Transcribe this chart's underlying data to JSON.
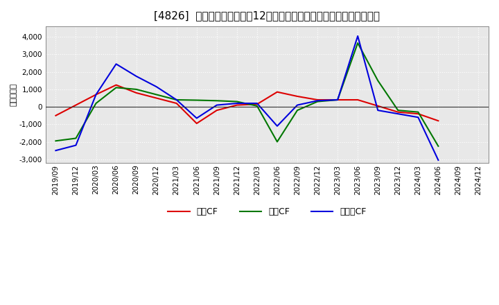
{
  "title": "[4826]  キャッシュフローの12か月移動合計の対前年同期増減額の推移",
  "ylabel": "（百万円）",
  "xlabels": [
    "2019/09",
    "2019/12",
    "2020/03",
    "2020/06",
    "2020/09",
    "2020/12",
    "2021/03",
    "2021/06",
    "2021/09",
    "2021/12",
    "2022/03",
    "2022/06",
    "2022/09",
    "2022/12",
    "2023/03",
    "2023/06",
    "2023/09",
    "2023/12",
    "2024/03",
    "2024/06",
    "2024/09",
    "2024/12"
  ],
  "operating_cf": [
    -500,
    100,
    700,
    1250,
    800,
    500,
    200,
    -950,
    -200,
    100,
    150,
    850,
    600,
    400,
    400,
    400,
    50,
    -300,
    -400,
    -800,
    null,
    null
  ],
  "investing_cf": [
    -1950,
    -1800,
    200,
    1100,
    1000,
    700,
    400,
    380,
    350,
    300,
    50,
    -2000,
    -200,
    300,
    400,
    3650,
    1500,
    -200,
    -300,
    -2250,
    null,
    null
  ],
  "free_cf": [
    -2500,
    -2200,
    700,
    2450,
    1750,
    1150,
    400,
    -650,
    100,
    200,
    200,
    -1100,
    100,
    350,
    400,
    4050,
    -200,
    -400,
    -600,
    -3050,
    null,
    null
  ],
  "ylim": [
    -3200,
    4600
  ],
  "yticks": [
    -3000,
    -2000,
    -1000,
    0,
    1000,
    2000,
    3000,
    4000
  ],
  "bg_color": "#ffffff",
  "plot_bg_color": "#e8e8e8",
  "grid_color": "#ffffff",
  "operating_color": "#dd0000",
  "investing_color": "#007700",
  "free_color": "#0000dd",
  "legend_labels": [
    "営業CF",
    "投資CF",
    "フリーCF"
  ],
  "title_fontsize": 11,
  "axis_fontsize": 7.5,
  "ylabel_fontsize": 8
}
